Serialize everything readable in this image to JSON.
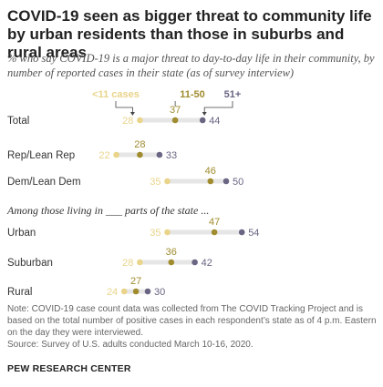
{
  "title": "COVID-19 seen as bigger threat to community life by urban residents than those in suburbs and rural areas",
  "subtitle": "% who say COVID-19 is a major threat to day-to-day life in their community, by number of reported cases in their state (as of survey interview)",
  "note": "Note: COVID-19 case count data was collected from The COVID Tracking Project and is based on the total number of positive cases in each respondent’s state as of 4 p.m. Eastern on the day they were interviewed.",
  "source": "Source: Survey of U.S. adults conducted March 10-16, 2020.",
  "org": "PEW RESEARCH CENTER",
  "section_label": "Among those living in ___ parts of the state ...",
  "colors": {
    "low": "#e9d48a",
    "mid": "#a08c2e",
    "high": "#6b6584",
    "bar": "#e6e6e6"
  },
  "chart_data": {
    "type": "dot",
    "series": [
      {
        "name": "<11 cases",
        "key": "low"
      },
      {
        "name": "11-50",
        "key": "mid"
      },
      {
        "name": "51+",
        "key": "high"
      }
    ],
    "rows": [
      {
        "label": "Total",
        "low": 28,
        "mid": 37,
        "high": 44
      },
      {
        "label": "Rep/Lean Rep",
        "low": 22,
        "mid": 28,
        "high": 33
      },
      {
        "label": "Dem/Lean Dem",
        "low": 35,
        "mid": 46,
        "high": 50
      },
      {
        "label": "Urban",
        "low": 35,
        "mid": 47,
        "high": 54
      },
      {
        "label": "Suburban",
        "low": 28,
        "mid": 36,
        "high": 42
      },
      {
        "label": "Rural",
        "low": 24,
        "mid": 27,
        "high": 30
      }
    ]
  }
}
